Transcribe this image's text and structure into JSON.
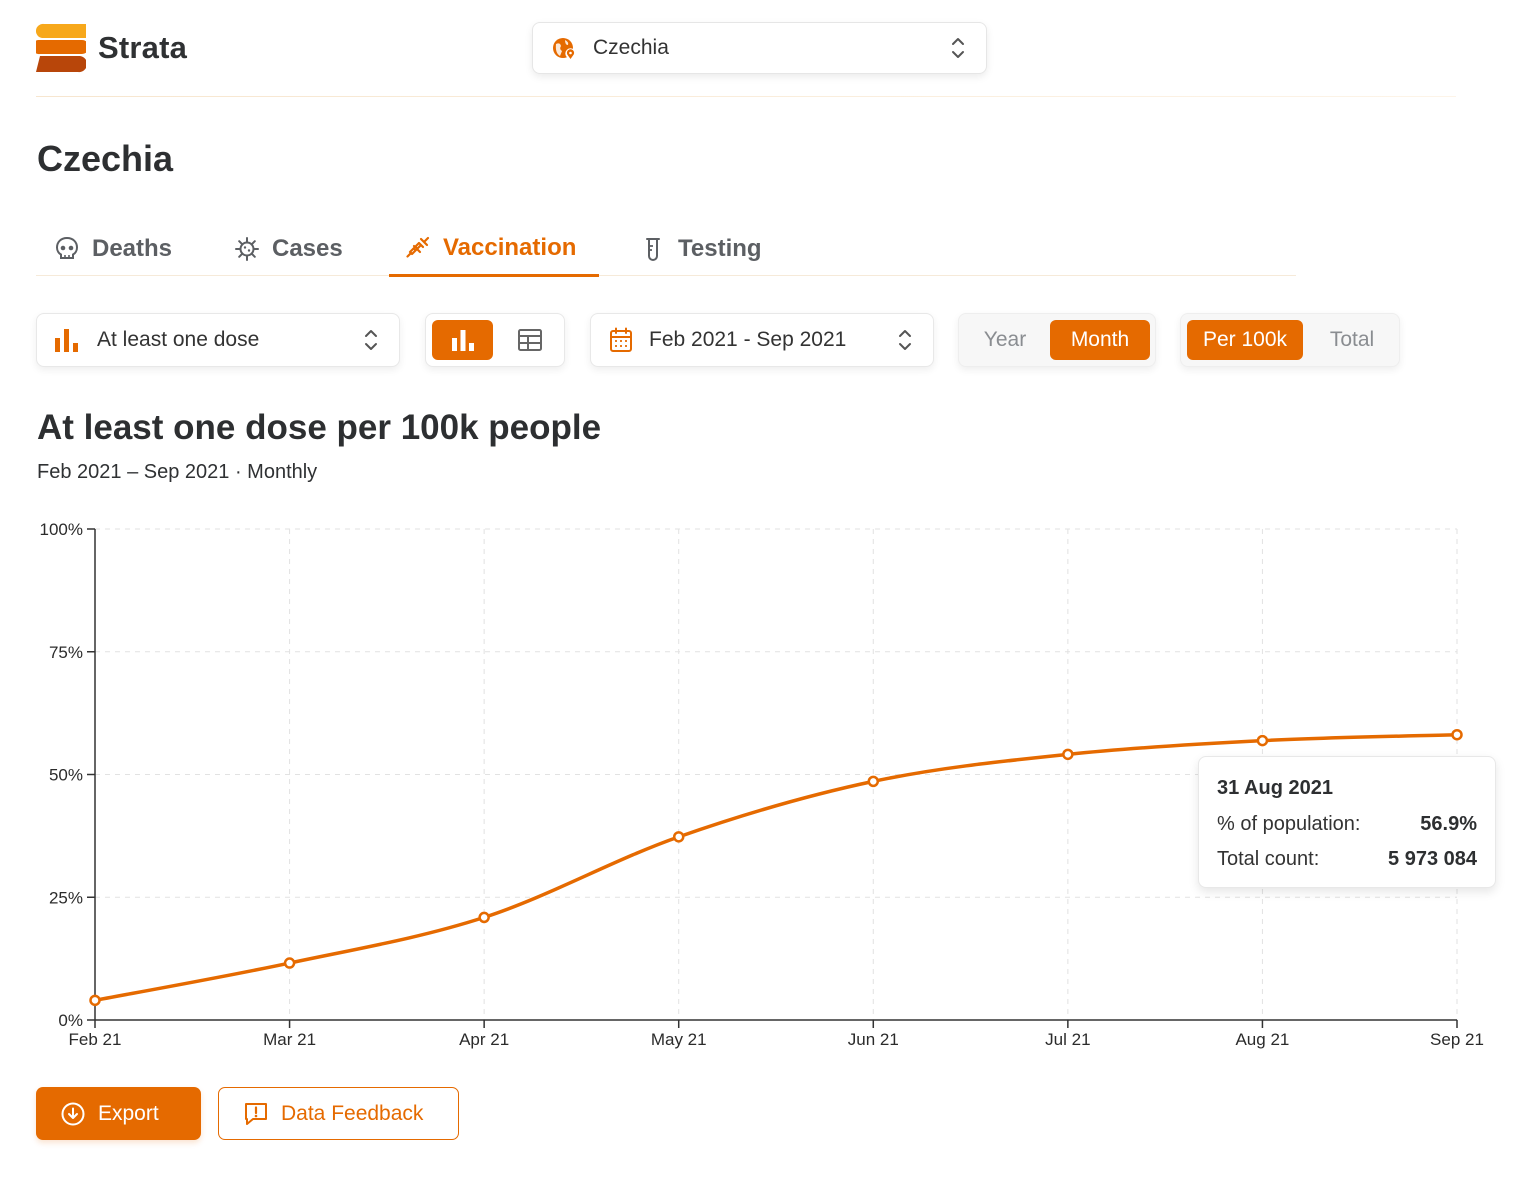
{
  "app": {
    "name": "Strata",
    "accent": "#e56a00"
  },
  "header": {
    "country_select": {
      "value": "Czechia",
      "icon": "globe-pin-icon"
    }
  },
  "page": {
    "title": "Czechia"
  },
  "tabs": [
    {
      "label": "Deaths",
      "icon": "skull-icon",
      "active": false
    },
    {
      "label": "Cases",
      "icon": "virus-icon",
      "active": false
    },
    {
      "label": "Vaccination",
      "icon": "syringe-icon",
      "active": true
    },
    {
      "label": "Testing",
      "icon": "test-tube-icon",
      "active": false
    }
  ],
  "controls": {
    "metric_select": {
      "value": "At least one dose",
      "icon": "bar-chart-icon"
    },
    "view_toggle": {
      "selected": "chart",
      "options": [
        "chart",
        "table"
      ]
    },
    "date_select": {
      "value": "Feb 2021 - Sep 2021",
      "icon": "calendar-icon"
    },
    "period_toggle": {
      "options": [
        "Year",
        "Month"
      ],
      "selected": "Month"
    },
    "normalization_toggle": {
      "options": [
        "Per 100k",
        "Total"
      ],
      "selected": "Per 100k"
    }
  },
  "chart_heading": {
    "title": "At least one dose per 100k people",
    "subtitle": "Feb 2021 – Sep 2021 · Monthly"
  },
  "chart_data": {
    "type": "line",
    "categories": [
      "Feb 21",
      "Mar 21",
      "Apr 21",
      "May 21",
      "Jun 21",
      "Jul 21",
      "Aug 21",
      "Sep 21"
    ],
    "series": [
      {
        "values": [
          4,
          11.6,
          20.9,
          37.3,
          48.6,
          54.1,
          56.9,
          58.1
        ],
        "color": "#e56a00"
      }
    ],
    "ylim": [
      0,
      100
    ],
    "yticks": [
      "0%",
      "25%",
      "50%",
      "75%",
      "100%"
    ],
    "ytick_values": [
      0,
      25,
      50,
      75,
      100
    ],
    "grid": true,
    "legend": "none"
  },
  "tooltip": {
    "date": "31 Aug 2021",
    "rows": [
      {
        "label": "% of population:",
        "value": "56.9%"
      },
      {
        "label": "Total count:",
        "value": "5 973 084"
      }
    ]
  },
  "actions": {
    "export": {
      "label": "Export",
      "icon": "download-circle-icon"
    },
    "feedback": {
      "label": "Data Feedback",
      "icon": "message-alert-icon"
    }
  }
}
